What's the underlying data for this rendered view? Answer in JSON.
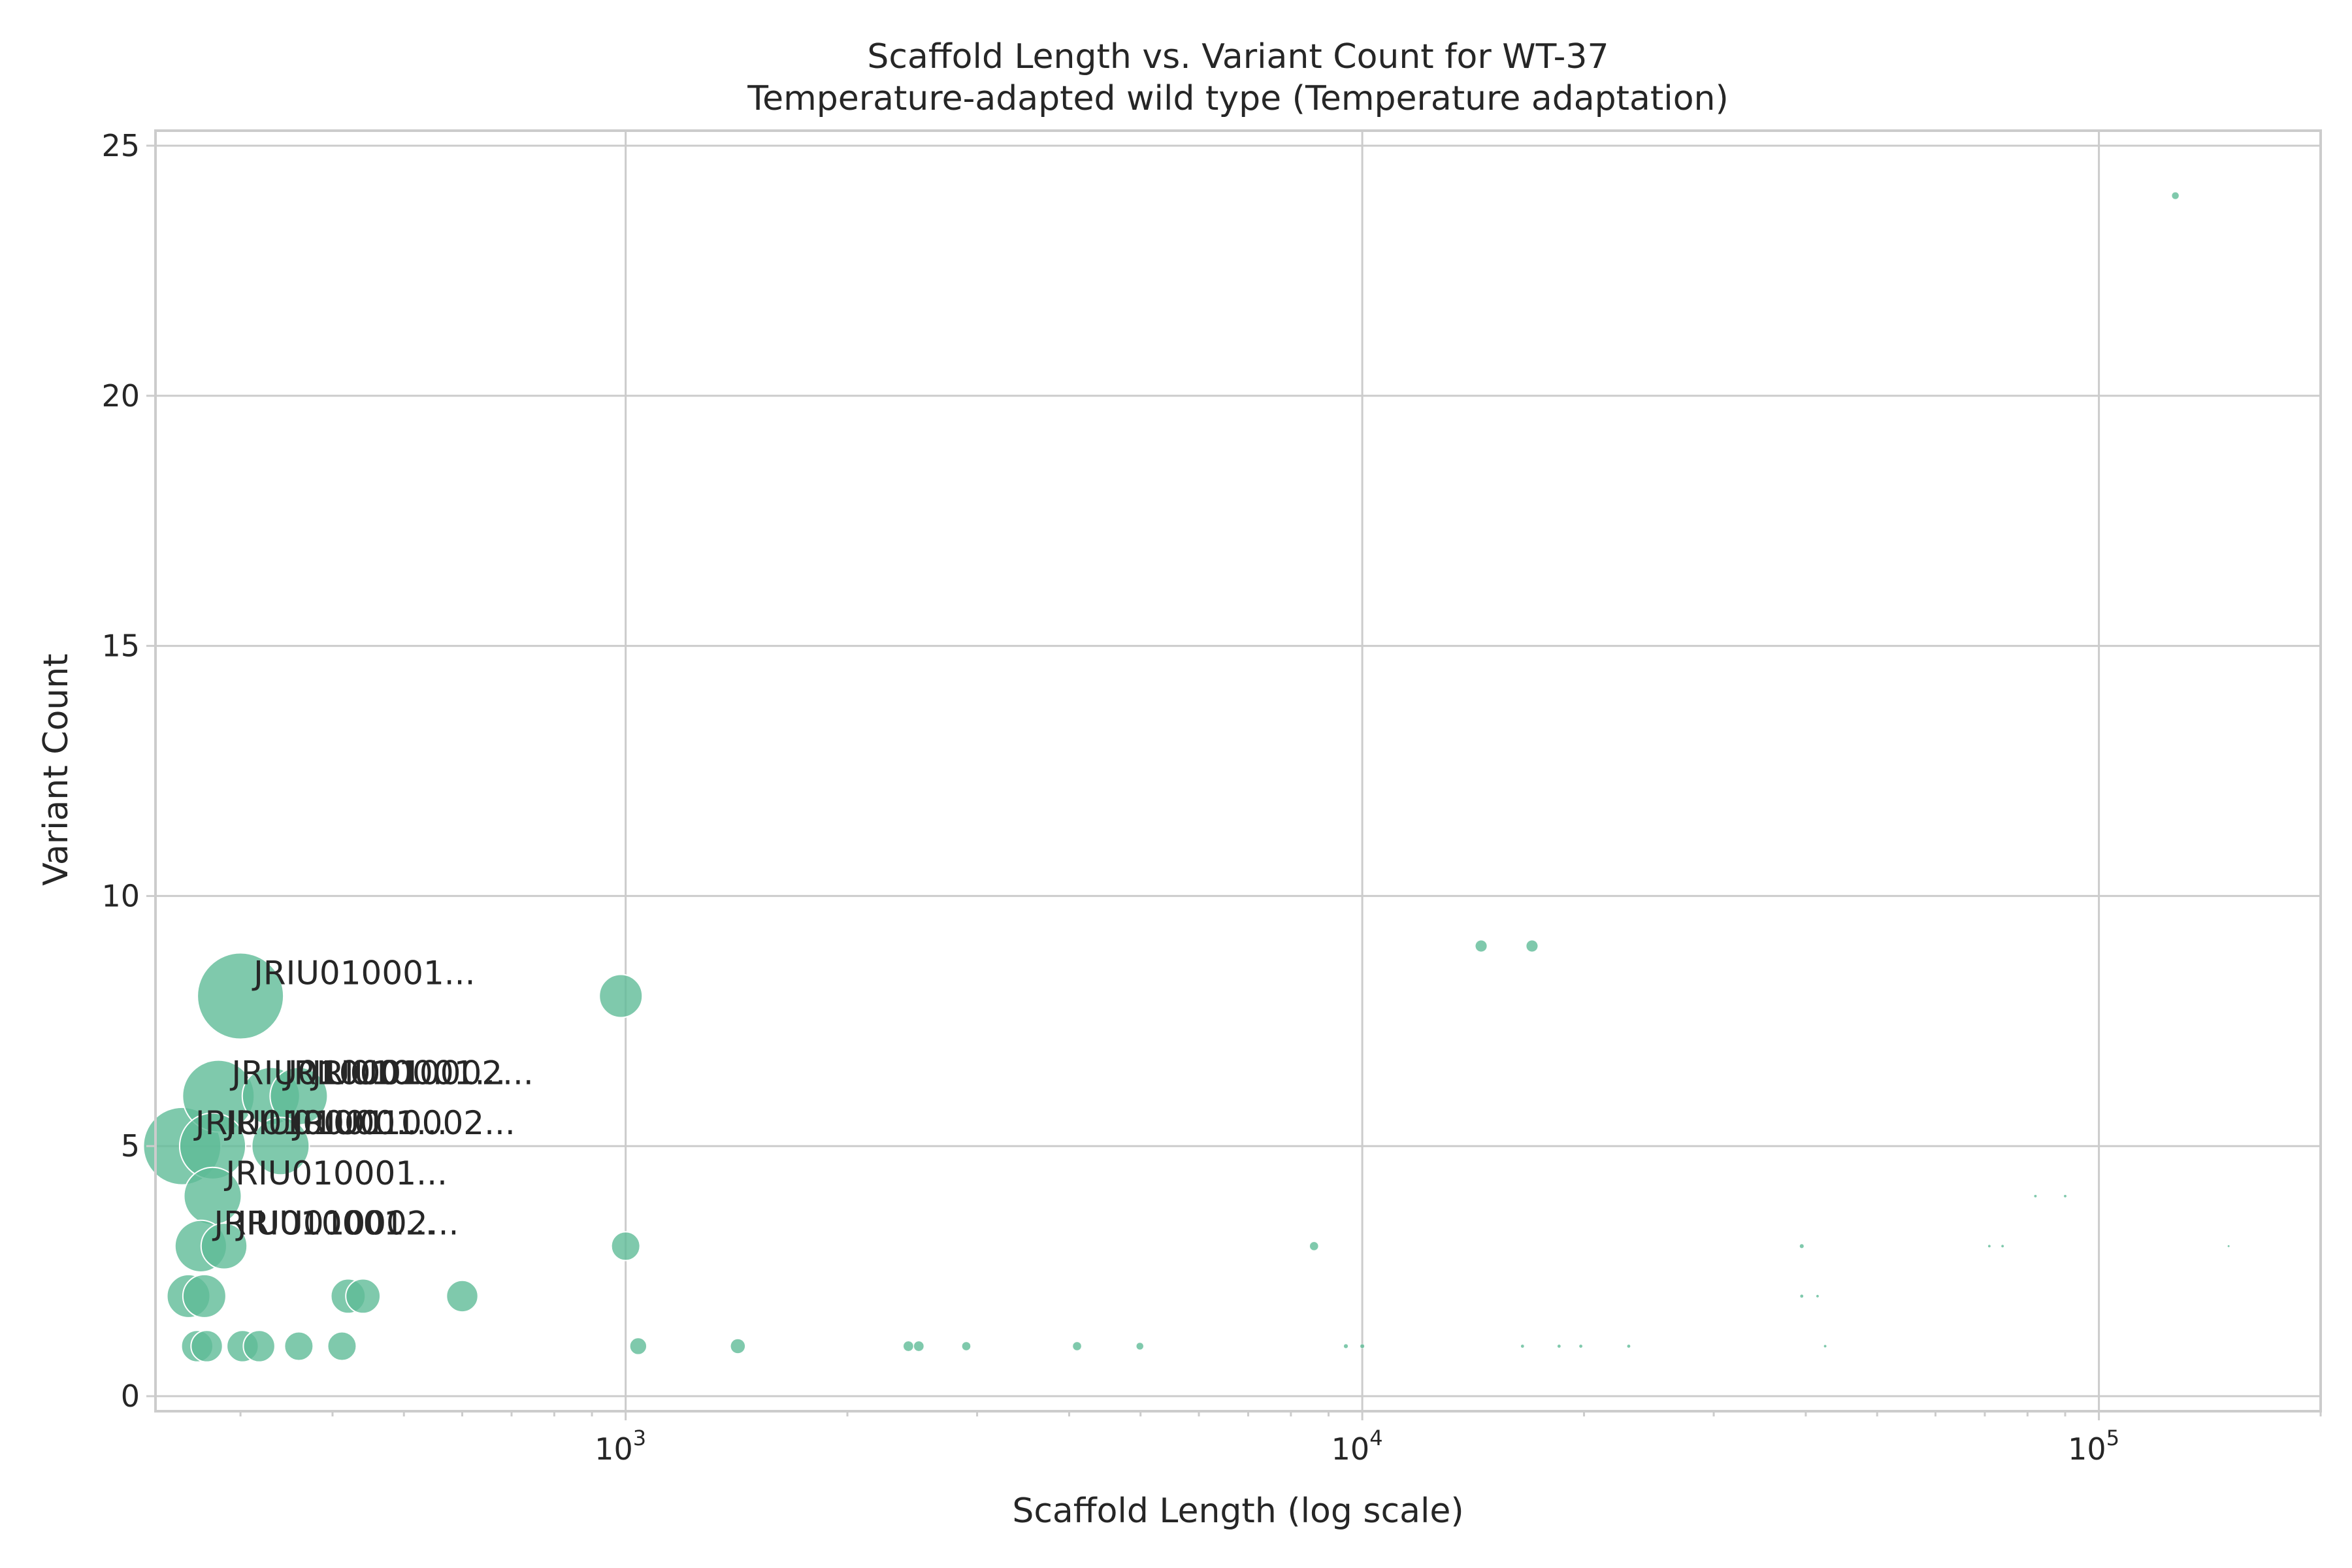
{
  "chart_data": {
    "type": "scatter",
    "title": "Scaffold Length vs. Variant Count for WT-37",
    "subtitle": "Temperature-adapted wild type (Temperature adaptation)",
    "xlabel": "Scaffold Length (log scale)",
    "ylabel": "Variant Count",
    "xscale": "log",
    "xlim": [
      230,
      200000
    ],
    "ylim": [
      -0.3,
      25.3
    ],
    "x_ticks": [
      {
        "value": 1000,
        "base": "10",
        "exp": "3"
      },
      {
        "value": 10000,
        "base": "10",
        "exp": "4"
      },
      {
        "value": 100000,
        "base": "10",
        "exp": "5"
      }
    ],
    "y_ticks": [
      0,
      5,
      10,
      15,
      20,
      25
    ],
    "grid": true,
    "colors": {
      "point": "#5fbb97",
      "grid": "#cccccc",
      "text": "#262626"
    },
    "points": [
      {
        "x": 300,
        "y": 8,
        "size": 3.0
      },
      {
        "x": 985,
        "y": 8,
        "size": 1.5
      },
      {
        "x": 280,
        "y": 6,
        "size": 2.5
      },
      {
        "x": 330,
        "y": 6,
        "size": 2.0
      },
      {
        "x": 360,
        "y": 6,
        "size": 2.0
      },
      {
        "x": 250,
        "y": 5,
        "size": 2.7
      },
      {
        "x": 275,
        "y": 5,
        "size": 2.3
      },
      {
        "x": 340,
        "y": 5,
        "size": 2.0
      },
      {
        "x": 275,
        "y": 4,
        "size": 2.0
      },
      {
        "x": 265,
        "y": 3,
        "size": 1.8
      },
      {
        "x": 285,
        "y": 3,
        "size": 1.6
      },
      {
        "x": 255,
        "y": 2,
        "size": 1.5
      },
      {
        "x": 268,
        "y": 2,
        "size": 1.5
      },
      {
        "x": 420,
        "y": 2,
        "size": 1.2
      },
      {
        "x": 440,
        "y": 2,
        "size": 1.2
      },
      {
        "x": 600,
        "y": 2,
        "size": 1.1
      },
      {
        "x": 262,
        "y": 1,
        "size": 1.1
      },
      {
        "x": 270,
        "y": 1,
        "size": 1.1
      },
      {
        "x": 302,
        "y": 1,
        "size": 1.1
      },
      {
        "x": 318,
        "y": 1,
        "size": 1.1
      },
      {
        "x": 360,
        "y": 1,
        "size": 1.0
      },
      {
        "x": 412,
        "y": 1,
        "size": 1.0
      },
      {
        "x": 1000,
        "y": 3,
        "size": 1.0
      },
      {
        "x": 1040,
        "y": 1,
        "size": 0.6
      },
      {
        "x": 1420,
        "y": 1,
        "size": 0.5
      },
      {
        "x": 2420,
        "y": 1,
        "size": 0.35
      },
      {
        "x": 2500,
        "y": 1,
        "size": 0.35
      },
      {
        "x": 2900,
        "y": 1,
        "size": 0.3
      },
      {
        "x": 4100,
        "y": 1,
        "size": 0.3
      },
      {
        "x": 4990,
        "y": 1,
        "size": 0.25
      },
      {
        "x": 8600,
        "y": 3,
        "size": 0.3
      },
      {
        "x": 9500,
        "y": 1,
        "size": 0.15
      },
      {
        "x": 10000,
        "y": 1,
        "size": 0.15
      },
      {
        "x": 14500,
        "y": 9,
        "size": 0.4
      },
      {
        "x": 17000,
        "y": 9,
        "size": 0.4
      },
      {
        "x": 16500,
        "y": 1,
        "size": 0.12
      },
      {
        "x": 18500,
        "y": 1,
        "size": 0.12
      },
      {
        "x": 19800,
        "y": 1,
        "size": 0.12
      },
      {
        "x": 23000,
        "y": 1,
        "size": 0.12
      },
      {
        "x": 39500,
        "y": 3,
        "size": 0.15
      },
      {
        "x": 39500,
        "y": 2,
        "size": 0.12
      },
      {
        "x": 41500,
        "y": 2,
        "size": 0.1
      },
      {
        "x": 42500,
        "y": 1,
        "size": 0.1
      },
      {
        "x": 71000,
        "y": 3,
        "size": 0.1
      },
      {
        "x": 74000,
        "y": 3,
        "size": 0.1
      },
      {
        "x": 82000,
        "y": 4,
        "size": 0.1
      },
      {
        "x": 90000,
        "y": 4,
        "size": 0.1
      },
      {
        "x": 127000,
        "y": 24,
        "size": 0.25
      },
      {
        "x": 150000,
        "y": 3,
        "size": 0.08
      }
    ],
    "annotations": [
      {
        "text": "JRIU010001...",
        "x": 300,
        "y": 8
      },
      {
        "text": "JRIU010001...",
        "x": 280,
        "y": 6
      },
      {
        "text": "JRIU010001...",
        "x": 330,
        "y": 6
      },
      {
        "text": "JRIU010002...",
        "x": 360,
        "y": 6
      },
      {
        "text": "JRIU010001...",
        "x": 250,
        "y": 5
      },
      {
        "text": "JRIU010001...",
        "x": 275,
        "y": 5
      },
      {
        "text": "JRIU010002...",
        "x": 340,
        "y": 5
      },
      {
        "text": "JRIU010001...",
        "x": 275,
        "y": 4
      },
      {
        "text": "JRIU010001...",
        "x": 265,
        "y": 3
      },
      {
        "text": "JRIU010002...",
        "x": 285,
        "y": 3
      }
    ]
  }
}
